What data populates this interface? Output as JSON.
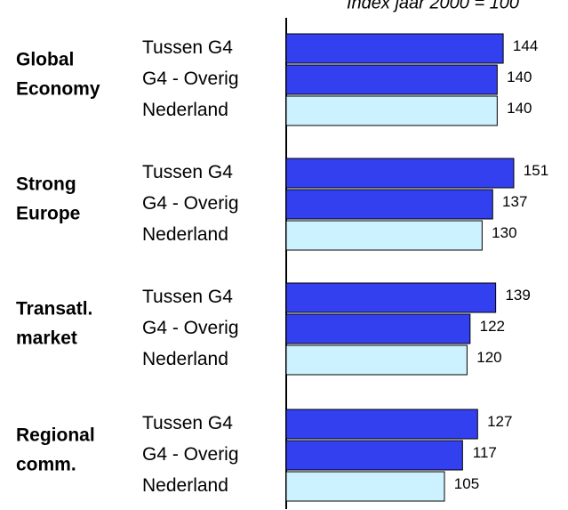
{
  "chart_data": {
    "type": "bar",
    "orientation": "horizontal",
    "title": "Index jaar 2000 = 100",
    "categories": [
      [
        "Global",
        "Economy"
      ],
      [
        "Strong",
        "Europe"
      ],
      [
        "Transatl.",
        "market"
      ],
      [
        "Regional",
        "comm."
      ]
    ],
    "series": [
      {
        "name": "Tussen G4",
        "color": "#3340f0",
        "values": [
          144,
          151,
          139,
          127
        ]
      },
      {
        "name": "G4 - Overig",
        "color": "#3340f0",
        "values": [
          140,
          137,
          122,
          117
        ]
      },
      {
        "name": "Nederland",
        "color": "#ccf2ff",
        "values": [
          140,
          130,
          120,
          105
        ]
      }
    ],
    "xlim": [
      0,
      187
    ]
  }
}
